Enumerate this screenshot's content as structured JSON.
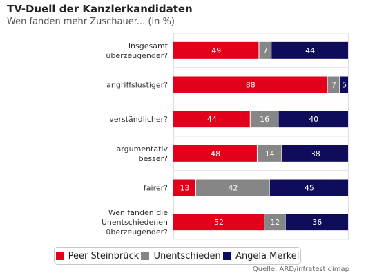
{
  "title": "TV-Duell der Kanzlerkandidaten",
  "subtitle": "Wen fanden mehr Zuschauer... (in %)",
  "source": "Quelle: ARD/infratest dimap",
  "colors": {
    "steinbrueck": "#e2001a",
    "unentschieden": "#868686",
    "merkel": "#0f0c5a"
  },
  "chart_data": {
    "type": "bar",
    "stacked": true,
    "orientation": "horizontal",
    "xlim": [
      0,
      100
    ],
    "categories": [
      [
        "insgesamt",
        "überzeugender?"
      ],
      [
        "angriffslustiger?"
      ],
      [
        "verständlicher?"
      ],
      [
        "argumentativ",
        "besser?"
      ],
      [
        "fairer?"
      ],
      [
        "Wen fanden die",
        "Unentschiedenen",
        "überzeugender?"
      ]
    ],
    "series": [
      {
        "name": "Peer Steinbrück",
        "color": "#e2001a",
        "values": [
          49,
          88,
          44,
          48,
          13,
          52
        ]
      },
      {
        "name": "Unentschieden",
        "color": "#868686",
        "values": [
          7,
          7,
          16,
          14,
          42,
          12
        ]
      },
      {
        "name": "Angela Merkel",
        "color": "#0f0c5a",
        "values": [
          44,
          5,
          40,
          38,
          45,
          36
        ]
      }
    ],
    "legend_position": "bottom",
    "grid": true
  }
}
